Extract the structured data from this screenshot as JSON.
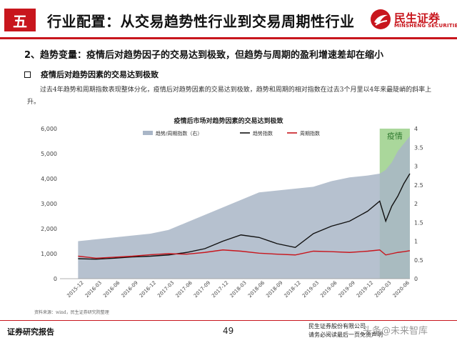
{
  "header": {
    "section_label": "五",
    "title": "行业配置：从交易趋势性行业到交易周期性行业",
    "logo_cn": "民生证券",
    "logo_en": "MINSHENG SECURITIES",
    "accent_color": "#c8161d"
  },
  "subheading": "2、趋势变量：疫情后对趋势因子的交易达到极致，但趋势与周期的盈利增速差却在缩小",
  "bullet": "疫情后对趋势因素的交易达到极致",
  "paragraph": "过去4年趋势和周期指数表现整体分化，疫情后对趋势因素的交易达到极致，趋势和周期的相对指数在过去3个月里以4年来最陡峭的斜率上升。",
  "chart_data": {
    "type": "line",
    "title": "疫情后市场对趋势因素的交易达到极致",
    "legend": [
      "趋势/周期指数（右）",
      "趋势指数",
      "周期指数"
    ],
    "legend_position": "top",
    "annotation": "疫情",
    "x_ticks": [
      "2015-12",
      "2016-03",
      "2016-06",
      "2016-09",
      "2016-12",
      "2017-03",
      "2017-06",
      "2017-09",
      "2017-12",
      "2018-03",
      "2018-06",
      "2018-09",
      "2018-12",
      "2019-03",
      "2019-06",
      "2019-09",
      "2019-12",
      "2020-03",
      "2020-06"
    ],
    "y_left_ticks": [
      "0",
      "1,000",
      "2,000",
      "3,000",
      "4,000",
      "5,000",
      "6,000"
    ],
    "y_right_ticks": [
      "0",
      "0.5",
      "1",
      "1.5",
      "2",
      "2.5",
      "3",
      "3.5",
      "4"
    ],
    "ylim_left": [
      0,
      6000
    ],
    "ylim_right": [
      0,
      4
    ],
    "grid": false,
    "series": [
      {
        "name": "趋势/周期指数（右）",
        "axis": "right",
        "style": "area",
        "color": "#a9b6c7",
        "x": [
          "2015-12",
          "2016-03",
          "2016-06",
          "2016-09",
          "2016-12",
          "2017-03",
          "2017-06",
          "2017-09",
          "2017-12",
          "2018-03",
          "2018-06",
          "2018-09",
          "2018-12",
          "2019-03",
          "2019-06",
          "2019-09",
          "2019-12",
          "2020-02",
          "2020-03",
          "2020-04",
          "2020-05",
          "2020-06",
          "2020-07"
        ],
        "values": [
          1.0,
          1.05,
          1.1,
          1.15,
          1.2,
          1.3,
          1.5,
          1.7,
          1.9,
          2.1,
          2.3,
          2.35,
          2.4,
          2.45,
          2.6,
          2.7,
          2.75,
          2.8,
          2.9,
          3.1,
          3.4,
          3.6,
          3.8
        ]
      },
      {
        "name": "趋势指数",
        "axis": "left",
        "style": "line",
        "color": "#111111",
        "x": [
          "2015-12",
          "2016-03",
          "2016-06",
          "2016-09",
          "2016-12",
          "2017-03",
          "2017-06",
          "2017-09",
          "2017-12",
          "2018-03",
          "2018-06",
          "2018-09",
          "2018-12",
          "2019-03",
          "2019-06",
          "2019-09",
          "2019-12",
          "2020-02",
          "2020-03",
          "2020-04",
          "2020-05",
          "2020-06",
          "2020-07"
        ],
        "values": [
          800,
          780,
          820,
          870,
          900,
          950,
          1050,
          1200,
          1500,
          1750,
          1650,
          1400,
          1250,
          1800,
          2100,
          2300,
          2700,
          3100,
          2300,
          2900,
          3300,
          3800,
          4200
        ]
      },
      {
        "name": "周期指数",
        "axis": "left",
        "style": "line",
        "color": "#c8161d",
        "x": [
          "2015-12",
          "2016-03",
          "2016-06",
          "2016-09",
          "2016-12",
          "2017-03",
          "2017-06",
          "2017-09",
          "2017-12",
          "2018-03",
          "2018-06",
          "2018-09",
          "2018-12",
          "2019-03",
          "2019-06",
          "2019-09",
          "2019-12",
          "2020-02",
          "2020-03",
          "2020-04",
          "2020-05",
          "2020-06",
          "2020-07"
        ],
        "values": [
          900,
          820,
          860,
          900,
          960,
          1000,
          980,
          1050,
          1150,
          1100,
          1020,
          980,
          950,
          1100,
          1080,
          1050,
          1100,
          1150,
          950,
          1000,
          1050,
          1080,
          1120
        ]
      }
    ],
    "shaded_region": {
      "from": "2020-02",
      "to": "2020-07",
      "color": "#8ec97a"
    }
  },
  "source": "资料来源：wind，民生证券研究院整理",
  "footer": {
    "left": "证券研究报告",
    "page_number": "49",
    "right_line1": "民生证券股份有限公司",
    "right_line2": "请务必阅读最后一页免责声明",
    "watermark": "头条@未来智库"
  }
}
